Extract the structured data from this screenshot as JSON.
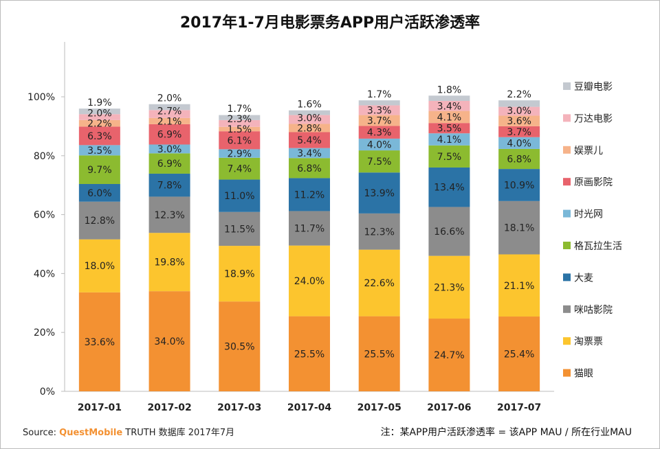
{
  "chart_data": {
    "type": "bar",
    "stacked": true,
    "title": "2017年1-7月电影票务APP用户活跃渗透率",
    "xlabel": "",
    "ylabel": "",
    "ylim": [
      0,
      100
    ],
    "yticks": [
      "0%",
      "20%",
      "40%",
      "60%",
      "80%",
      "100%"
    ],
    "grid": false,
    "legend": "right",
    "categories": [
      "2017-01",
      "2017-02",
      "2017-03",
      "2017-04",
      "2017-05",
      "2017-06",
      "2017-07"
    ],
    "series": [
      {
        "name": "猫眼",
        "color": "#f39132",
        "values": [
          33.6,
          34.0,
          30.5,
          25.5,
          25.5,
          24.7,
          25.4
        ]
      },
      {
        "name": "淘票票",
        "color": "#fcc52e",
        "values": [
          18.0,
          19.8,
          18.9,
          24.0,
          22.6,
          21.3,
          21.1
        ]
      },
      {
        "name": "咪咕影院",
        "color": "#8c8c8c",
        "values": [
          12.8,
          12.3,
          11.5,
          11.7,
          12.3,
          16.6,
          18.1
        ]
      },
      {
        "name": "大麦",
        "color": "#2b73a6",
        "values": [
          6.0,
          7.8,
          11.0,
          11.2,
          13.9,
          13.4,
          10.9
        ]
      },
      {
        "name": "格瓦拉生活",
        "color": "#8cbb30",
        "values": [
          9.7,
          6.9,
          7.4,
          6.8,
          7.5,
          7.5,
          6.8
        ]
      },
      {
        "name": "时光网",
        "color": "#7ab8d8",
        "values": [
          3.5,
          3.0,
          2.9,
          3.4,
          4.0,
          4.1,
          4.0
        ]
      },
      {
        "name": "原画影院",
        "color": "#e8636c",
        "values": [
          6.3,
          6.9,
          6.1,
          5.4,
          4.3,
          3.5,
          3.7
        ]
      },
      {
        "name": "娱票儿",
        "color": "#f6b38a",
        "values": [
          2.2,
          2.1,
          1.5,
          2.8,
          3.7,
          4.1,
          3.6
        ]
      },
      {
        "name": "万达电影",
        "color": "#f4b3bb",
        "values": [
          2.0,
          2.7,
          2.3,
          3.0,
          3.3,
          3.4,
          3.0
        ]
      },
      {
        "name": "豆瓣电影",
        "color": "#c4c9d0",
        "values": [
          1.9,
          2.0,
          1.7,
          1.6,
          1.7,
          1.8,
          2.2
        ]
      }
    ]
  },
  "footer": {
    "source_label": "Source:",
    "brand": "QuestMobile",
    "source_text": "TRUTH 数据库 2017年7月",
    "note": "注：某APP用户活跃渗透率 = 该APP MAU / 所在行业MAU"
  }
}
